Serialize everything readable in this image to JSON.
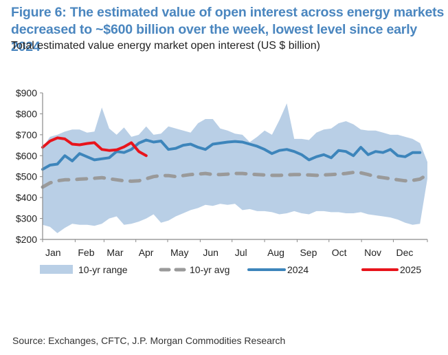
{
  "header": {
    "title": "Figure 6: The estimated value of open interest across energy markets decreased to ~$600 billion over the week, lowest level since early 2024",
    "subtitle": "Total estimated value energy market open interest (US $ billion)"
  },
  "footer": {
    "source": "Source: Exchanges, CFTC, J.P. Morgan Commodities Research"
  },
  "colors": {
    "title": "#4a86bf",
    "range_fill": "#b9cfe6",
    "avg_line": "#9a9a9a",
    "line_2024": "#3d85bb",
    "line_2025": "#e8141c",
    "axis": "#8a8a8a"
  },
  "chart_data": {
    "type": "area",
    "title": "Total estimated value energy market open interest (US $ billion)",
    "xlabel": "",
    "ylabel": "US $ billion",
    "ylim": [
      200,
      900
    ],
    "yticks": [
      200,
      300,
      400,
      500,
      600,
      700,
      800,
      900
    ],
    "ytick_labels": [
      "$200",
      "$300",
      "$400",
      "$500",
      "$600",
      "$700",
      "$800",
      "$900"
    ],
    "xlim": [
      1,
      53
    ],
    "x_unit": "week",
    "month_ticks": [
      1,
      5.4,
      9.3,
      13.6,
      17.9,
      22.3,
      26.6,
      31,
      35.4,
      39.7,
      44.1,
      48.4
    ],
    "categories": [
      "Jan",
      "Feb",
      "Mar",
      "Apr",
      "May",
      "Jun",
      "Jul",
      "Aug",
      "Sep",
      "Oct",
      "Nov",
      "Dec"
    ],
    "grid": false,
    "legend_position": "bottom",
    "series": [
      {
        "name": "10-yr range",
        "kind": "band",
        "x": [
          1,
          2,
          3,
          4,
          5,
          6,
          7,
          8,
          9,
          10,
          11,
          12,
          13,
          14,
          15,
          16,
          17,
          18,
          19,
          20,
          21,
          22,
          23,
          24,
          25,
          26,
          27,
          28,
          29,
          30,
          31,
          32,
          33,
          34,
          35,
          36,
          37,
          38,
          39,
          40,
          41,
          42,
          43,
          44,
          45,
          46,
          47,
          48,
          49,
          50,
          51,
          52,
          53
        ],
        "upper": [
          640,
          690,
          700,
          715,
          725,
          725,
          710,
          715,
          830,
          730,
          700,
          735,
          690,
          700,
          740,
          700,
          705,
          740,
          730,
          720,
          710,
          755,
          775,
          775,
          730,
          720,
          705,
          700,
          665,
          690,
          720,
          700,
          770,
          850,
          680,
          680,
          675,
          710,
          725,
          730,
          755,
          765,
          750,
          725,
          720,
          720,
          710,
          700,
          700,
          690,
          680,
          660,
          570
        ],
        "lower": [
          270,
          260,
          230,
          255,
          275,
          270,
          270,
          265,
          275,
          300,
          310,
          270,
          275,
          285,
          300,
          320,
          280,
          290,
          310,
          325,
          340,
          350,
          365,
          360,
          370,
          365,
          370,
          340,
          345,
          335,
          335,
          330,
          320,
          325,
          335,
          325,
          320,
          335,
          335,
          330,
          330,
          325,
          325,
          330,
          320,
          315,
          310,
          305,
          295,
          280,
          270,
          275,
          490
        ]
      },
      {
        "name": "10-yr avg",
        "kind": "line",
        "dashed": true,
        "x": [
          1,
          2,
          3,
          4,
          5,
          6,
          7,
          8,
          9,
          10,
          11,
          12,
          13,
          14,
          15,
          16,
          17,
          18,
          19,
          20,
          21,
          22,
          23,
          24,
          25,
          26,
          27,
          28,
          29,
          30,
          31,
          32,
          33,
          34,
          35,
          36,
          37,
          38,
          39,
          40,
          41,
          42,
          43,
          44,
          45,
          46,
          47,
          48,
          49,
          50,
          51,
          52,
          53
        ],
        "values": [
          450,
          470,
          480,
          485,
          485,
          488,
          490,
          492,
          495,
          490,
          485,
          480,
          478,
          480,
          490,
          500,
          505,
          505,
          500,
          505,
          510,
          512,
          515,
          510,
          510,
          512,
          515,
          515,
          512,
          510,
          508,
          506,
          506,
          508,
          510,
          510,
          508,
          506,
          508,
          510,
          512,
          515,
          520,
          518,
          510,
          500,
          495,
          490,
          485,
          480,
          482,
          488,
          510
        ]
      },
      {
        "name": "2024",
        "kind": "line",
        "x": [
          1,
          2,
          3,
          4,
          5,
          6,
          7,
          8,
          9,
          10,
          11,
          12,
          13,
          14,
          15,
          16,
          17,
          18,
          19,
          20,
          21,
          22,
          23,
          24,
          25,
          26,
          27,
          28,
          29,
          30,
          31,
          32,
          33,
          34,
          35,
          36,
          37,
          38,
          39,
          40,
          41,
          42,
          43,
          44,
          45,
          46,
          47,
          48,
          49,
          50,
          51,
          52
        ],
        "values": [
          535,
          555,
          560,
          600,
          575,
          610,
          595,
          580,
          585,
          590,
          620,
          615,
          630,
          660,
          675,
          665,
          670,
          630,
          635,
          650,
          655,
          640,
          630,
          655,
          660,
          665,
          668,
          665,
          655,
          645,
          630,
          610,
          625,
          630,
          620,
          605,
          580,
          595,
          605,
          590,
          625,
          620,
          600,
          640,
          605,
          620,
          615,
          630,
          600,
          595,
          615,
          615
        ]
      },
      {
        "name": "2025",
        "kind": "line",
        "x": [
          1,
          2,
          3,
          4,
          5,
          6,
          7,
          8,
          9,
          10,
          11,
          12,
          13,
          14,
          15
        ],
        "values": [
          640,
          670,
          685,
          680,
          655,
          652,
          658,
          662,
          630,
          625,
          628,
          642,
          662,
          620,
          600
        ]
      }
    ],
    "legend": [
      "10-yr range",
      "10-yr avg",
      "2024",
      "2025"
    ]
  }
}
